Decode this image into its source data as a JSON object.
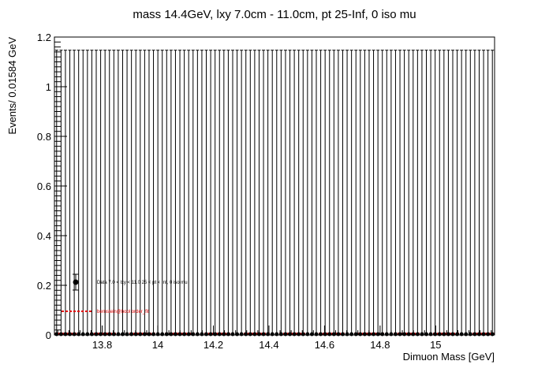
{
  "chart_data": {
    "type": "scatter",
    "title": "mass 14.4GeV, lxy 7.0cm - 11.0cm, pt 25-Inf, 0 iso mu",
    "xlabel": "Dimuon Mass [GeV]",
    "ylabel": "Events/ 0.01584 GeV",
    "xlim": [
      13.628,
      15.212
    ],
    "ylim": [
      0,
      1.2
    ],
    "x_ticks": [
      13.8,
      14.0,
      14.2,
      14.4,
      14.6,
      14.8,
      15.0
    ],
    "x_tick_labels": [
      "13.8",
      "14",
      "14.2",
      "14.4",
      "14.6",
      "14.8",
      "15"
    ],
    "y_ticks": [
      0,
      0.2,
      0.4,
      0.6,
      0.8,
      1.0,
      1.2
    ],
    "y_tick_labels": [
      "0",
      "0.2",
      "0.4",
      "0.6",
      "0.8",
      "1",
      "1.2"
    ],
    "bin_width": 0.01584,
    "n_bins": 100,
    "data_values_all_bins": 0,
    "error_bar_upper": 1.147,
    "fit_value": 0.005,
    "grid": false,
    "legend_position": "center-left",
    "colors": {
      "data": "#000000",
      "fit": "#e00000"
    },
    "series": [
      {
        "name": "Data 7.0 < lxy < 11.0 25 < pt < Inf, 0 iso mu",
        "marker": "black-circle-with-error-bars"
      },
      {
        "name": "bernstein@bool order_fit",
        "style": "red-dashed-line"
      }
    ]
  }
}
